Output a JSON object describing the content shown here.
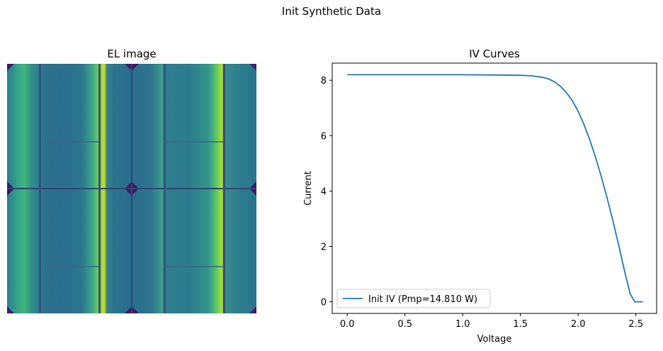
{
  "figure": {
    "suptitle": "Init Synthetic Data"
  },
  "el_image": {
    "title": "EL image",
    "colormap": "viridis"
  },
  "chart_data": {
    "type": "line",
    "title": "IV Curves",
    "xlabel": "Voltage",
    "ylabel": "Current",
    "xlim": [
      -0.13,
      2.68
    ],
    "ylim": [
      -0.42,
      8.62
    ],
    "xticks": [
      0.0,
      0.5,
      1.0,
      1.5,
      2.0,
      2.5
    ],
    "xtick_labels": [
      "0.0",
      "0.5",
      "1.0",
      "1.5",
      "2.0",
      "2.5"
    ],
    "yticks": [
      0,
      2,
      4,
      6,
      8
    ],
    "ytick_labels": [
      "0",
      "2",
      "4",
      "6",
      "8"
    ],
    "grid": false,
    "legend_position": "lower-left",
    "series": [
      {
        "name": "Init IV (Pmp=14.810 W)",
        "color": "#1f77b4",
        "x": [
          0.0,
          0.5,
          1.0,
          1.3,
          1.5,
          1.6,
          1.7,
          1.75,
          1.8,
          1.85,
          1.9,
          1.95,
          2.0,
          2.05,
          2.1,
          2.15,
          2.2,
          2.25,
          2.3,
          2.35,
          2.4,
          2.45,
          2.49,
          2.5,
          2.56
        ],
        "y": [
          8.2,
          8.2,
          8.2,
          8.19,
          8.18,
          8.16,
          8.1,
          8.04,
          7.93,
          7.77,
          7.55,
          7.26,
          6.88,
          6.41,
          5.86,
          5.23,
          4.53,
          3.77,
          2.95,
          2.07,
          1.15,
          0.3,
          0.0,
          0.0,
          0.0
        ]
      }
    ]
  }
}
